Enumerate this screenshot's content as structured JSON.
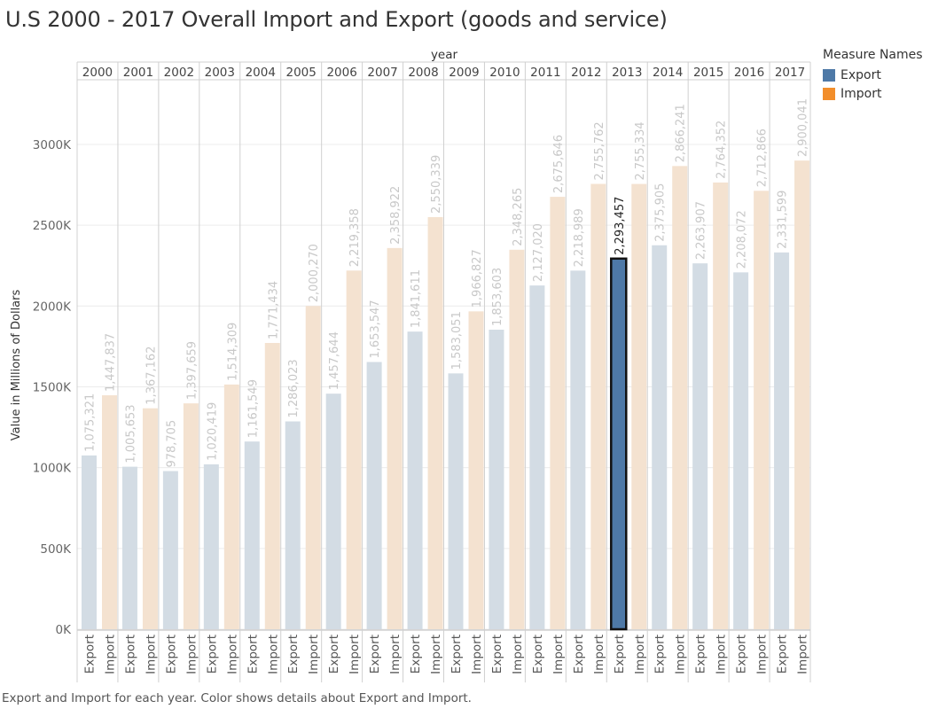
{
  "title": "U.S 2000 - 2017 Overall Import and Export (goods and service)",
  "caption": "Export and Import for each year.  Color shows details about Export and Import.",
  "legend": {
    "title": "Measure Names",
    "items": [
      {
        "label": "Export",
        "color": "#4e79a7"
      },
      {
        "label": "Import",
        "color": "#f28e2b"
      }
    ]
  },
  "chart_data": {
    "type": "bar",
    "xlabel": "year",
    "ylabel": "Value in Millions of Dollars",
    "ylim": [
      0,
      3400000
    ],
    "yticks": [
      0,
      500000,
      1000000,
      1500000,
      2000000,
      2500000,
      3000000
    ],
    "ytick_labels": [
      "0K",
      "500K",
      "1000K",
      "1500K",
      "2000K",
      "2500K",
      "3000K"
    ],
    "categories": [
      "2000",
      "2001",
      "2002",
      "2003",
      "2004",
      "2005",
      "2006",
      "2007",
      "2008",
      "2009",
      "2010",
      "2011",
      "2012",
      "2013",
      "2014",
      "2015",
      "2016",
      "2017"
    ],
    "series": [
      {
        "name": "Export",
        "values": [
          1075321,
          1005653,
          978705,
          1020419,
          1161549,
          1286023,
          1457644,
          1653547,
          1841611,
          1583051,
          1853603,
          2127020,
          2218989,
          2293457,
          2375905,
          2263907,
          2208072,
          2331599
        ]
      },
      {
        "name": "Import",
        "values": [
          1447837,
          1367162,
          1397659,
          1514309,
          1771434,
          2000270,
          2219358,
          2358922,
          2550339,
          1966827,
          2348265,
          2675646,
          2755762,
          2755334,
          2866241,
          2764352,
          2712866,
          2900041
        ]
      }
    ],
    "value_labels": {
      "Export": [
        "1,075,321",
        "1,005,653",
        "978,705",
        "1,020,419",
        "1,161,549",
        "1,286,023",
        "1,457,644",
        "1,653,547",
        "1,841,611",
        "1,583,051",
        "1,853,603",
        "2,127,020",
        "2,218,989",
        "2,293,457",
        "2,375,905",
        "2,263,907",
        "2,208,072",
        "2,331,599"
      ],
      "Import": [
        "1,447,837",
        "1,367,162",
        "1,397,659",
        "1,514,309",
        "1,771,434",
        "2,000,270",
        "2,219,358",
        "2,358,922",
        "2,550,339",
        "1,966,827",
        "2,348,265",
        "2,675,646",
        "2,755,762",
        "2,755,334",
        "2,866,241",
        "2,764,352",
        "2,712,866",
        "2,900,041"
      ]
    },
    "highlight": {
      "category": "2013",
      "series": "Export"
    },
    "colors": {
      "export_faded": "#d3dce4",
      "import_faded": "#f4e2d0",
      "export_highlight": "#4e79a7",
      "highlight_border": "#111111",
      "faded_label": "#c8c8c8",
      "highlight_label": "#222222",
      "grid": "#ececec",
      "divider": "#d0d0d0"
    },
    "grid": true,
    "legend_position": "right"
  }
}
